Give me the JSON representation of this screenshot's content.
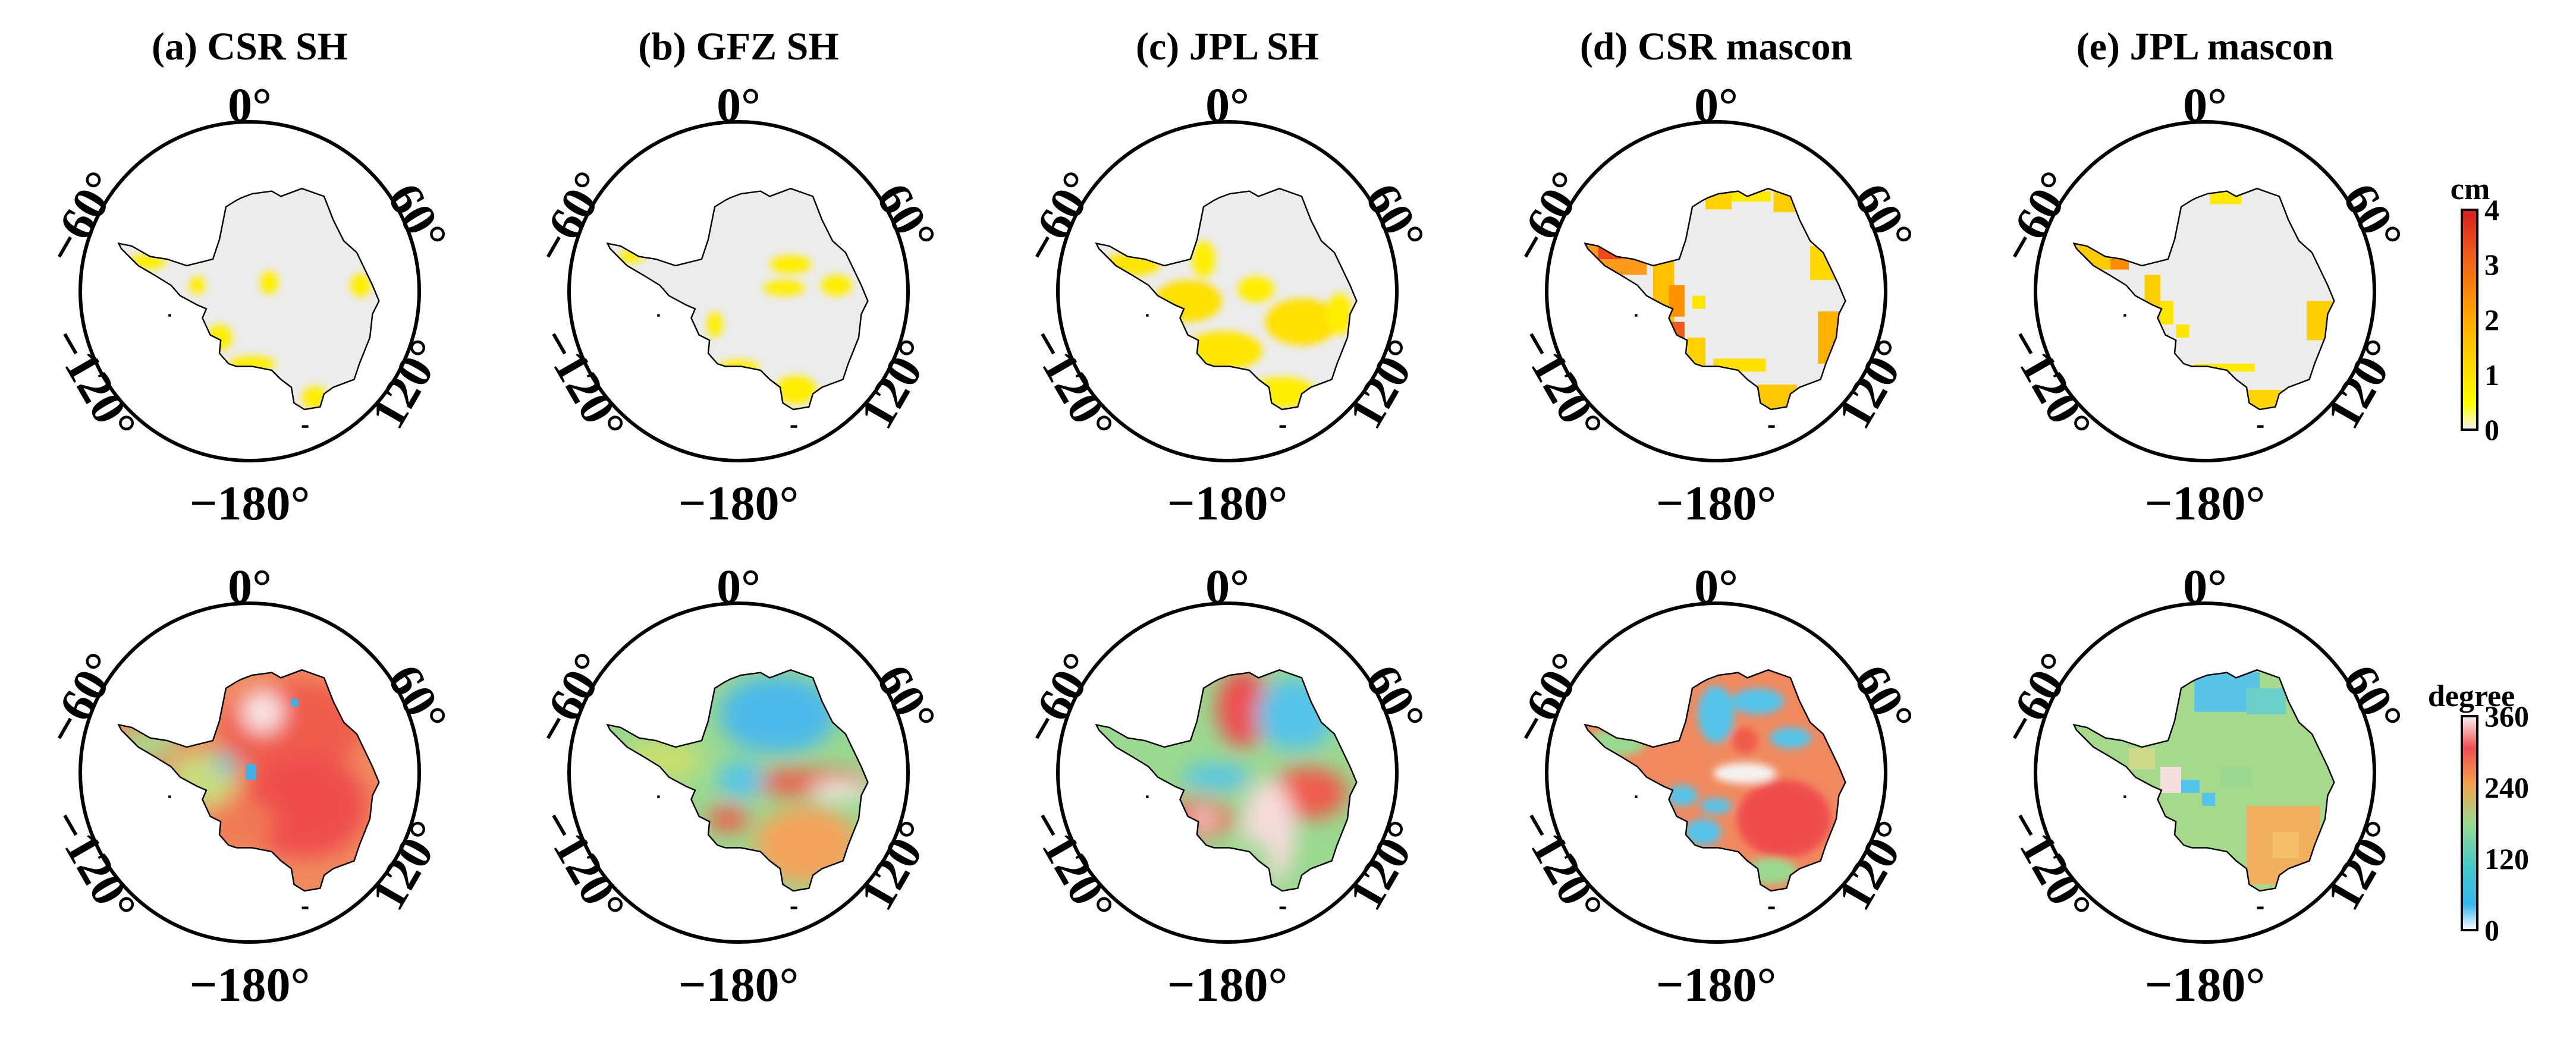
{
  "figure": {
    "panels": [
      {
        "key": "a",
        "label": "(a) CSR SH"
      },
      {
        "key": "b",
        "label": "(b) GFZ SH"
      },
      {
        "key": "c",
        "label": "(c) JPL SH"
      },
      {
        "key": "d",
        "label": "(d) CSR mascon"
      },
      {
        "key": "e",
        "label": "(e) JPL mascon"
      }
    ],
    "longitude_labels": {
      "top": "0°",
      "upper_left": "−60°",
      "upper_right": "60°",
      "lower_left": "−120°",
      "lower_right": "120°",
      "bottom": "−180°"
    },
    "rows": [
      {
        "quantity": "amplitude",
        "colorbar": {
          "title": "cm",
          "range": [
            0,
            4
          ],
          "ticks": [
            "4",
            "3",
            "2",
            "1",
            "0"
          ]
        }
      },
      {
        "quantity": "phase",
        "colorbar": {
          "title": "degree",
          "range": [
            0,
            360
          ],
          "ticks": [
            "360",
            "240",
            "120",
            "0"
          ]
        }
      }
    ],
    "colors": {
      "land_null": "#ececec",
      "amplitude_low": "#ffff00",
      "amplitude_mid": "#ff9900",
      "amplitude_high": "#e8302a",
      "phase_red": "#ef5b4b",
      "phase_orange": "#f4a35a",
      "phase_green": "#9ad98f",
      "phase_cyan": "#55c4ea",
      "phase_white": "#f6f2f2"
    }
  }
}
